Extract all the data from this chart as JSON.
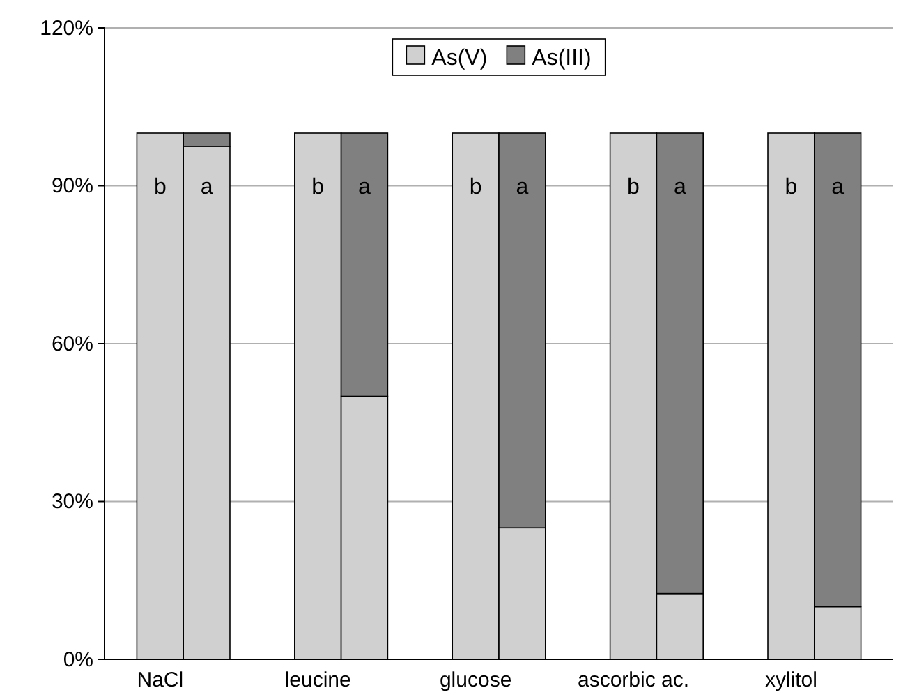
{
  "chart_data": {
    "type": "bar",
    "stacked": true,
    "categories": [
      "NaCl",
      null,
      "leucine",
      null,
      "glucose",
      null,
      "ascorbic ac.",
      null,
      "xylitol",
      null
    ],
    "series": [
      {
        "name": "As(V)",
        "color": "#d0d0d0",
        "values": [
          100,
          97.5,
          100,
          50,
          100,
          25,
          100,
          12.5,
          100,
          10
        ]
      },
      {
        "name": "As(III)",
        "color": "#808080",
        "values": [
          0,
          2.5,
          0,
          50,
          0,
          75,
          0,
          87.5,
          0,
          90
        ]
      }
    ],
    "ylim": [
      0,
      120
    ],
    "yticks": [
      {
        "value": 0,
        "label": "0%"
      },
      {
        "value": 30,
        "label": "30%"
      },
      {
        "value": 60,
        "label": "60%"
      },
      {
        "value": 90,
        "label": "90%"
      },
      {
        "value": 120,
        "label": "120%"
      }
    ],
    "grid": "y",
    "legend": "top",
    "annotations": [
      "b",
      "a",
      "b",
      "a",
      "b",
      "a",
      "b",
      "a",
      "b",
      "a"
    ]
  }
}
